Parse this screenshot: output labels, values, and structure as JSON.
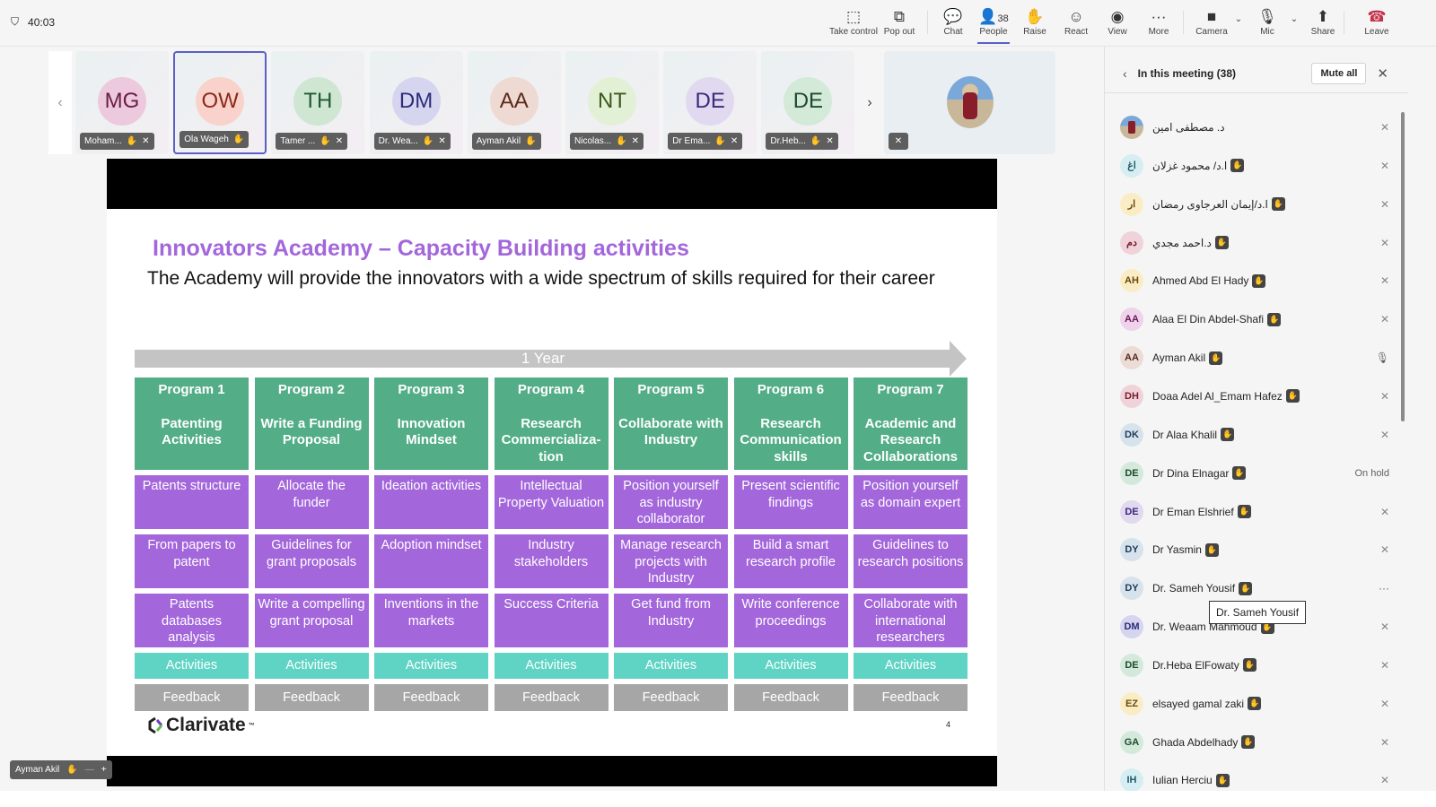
{
  "timer": "40:03",
  "toolbar": [
    {
      "label": "Take control",
      "icon": "take-control-icon",
      "glyph": "⬚"
    },
    {
      "label": "Pop out",
      "icon": "pop-out-icon",
      "glyph": "⧉"
    },
    {
      "label": "Chat",
      "icon": "chat-icon",
      "glyph": "💬"
    },
    {
      "label": "People",
      "icon": "people-icon",
      "glyph": "👤",
      "count": "38",
      "active": true
    },
    {
      "label": "Raise",
      "icon": "raise-hand-icon",
      "glyph": "✋"
    },
    {
      "label": "React",
      "icon": "react-icon",
      "glyph": "☺"
    },
    {
      "label": "View",
      "icon": "view-icon",
      "glyph": "◉"
    },
    {
      "label": "More",
      "icon": "more-icon",
      "glyph": "···"
    },
    {
      "label": "Camera",
      "icon": "camera-off-icon",
      "glyph": "■"
    },
    {
      "label": "Mic",
      "icon": "mic-off-icon",
      "glyph": "🎙"
    },
    {
      "label": "Share",
      "icon": "share-icon",
      "glyph": "⬆"
    },
    {
      "label": "Leave",
      "icon": "leave-icon",
      "glyph": "☎"
    }
  ],
  "strip": [
    {
      "initials": "MG",
      "name": "Moham...",
      "bg": "#ecc9dc",
      "fg": "#6b1c45",
      "muted": true
    },
    {
      "initials": "OW",
      "name": "Ola Wageh",
      "bg": "#f9d3cb",
      "fg": "#8a2a1a",
      "muted": false,
      "selected": true
    },
    {
      "initials": "TH",
      "name": "Tamer ...",
      "bg": "#cfe6d3",
      "fg": "#1f5a2e",
      "muted": true
    },
    {
      "initials": "DM",
      "name": "Dr. Wea...",
      "bg": "#d6d5ef",
      "fg": "#2c2c7a",
      "muted": true
    },
    {
      "initials": "AA",
      "name": "Ayman Akil",
      "bg": "#efd9d3",
      "fg": "#5a2a1a",
      "muted": false
    },
    {
      "initials": "NT",
      "name": "Nicolas...",
      "bg": "#e2f0d6",
      "fg": "#3a5a1a",
      "muted": true
    },
    {
      "initials": "DE",
      "name": "Dr Ema...",
      "bg": "#e0d9f0",
      "fg": "#3a2a7a",
      "muted": true
    },
    {
      "initials": "DE",
      "name": "Dr.Heb...",
      "bg": "#d3ead9",
      "fg": "#1f4a2e",
      "muted": true
    }
  ],
  "slide": {
    "title": "Innovators Academy – Capacity Building activities",
    "subtitle": "The Academy will provide the innovators with a wide spectrum of skills required for their career",
    "timeline": "1 Year",
    "programs": [
      {
        "head": "Program 1",
        "name": "Patenting Activities",
        "items": [
          "Patents structure",
          "From papers to patent",
          "Patents databases analysis"
        ]
      },
      {
        "head": "Program 2",
        "name": "Write a Funding Proposal",
        "items": [
          "Allocate the funder",
          "Guidelines for grant proposals",
          "Write a compelling grant proposal"
        ]
      },
      {
        "head": "Program 3",
        "name": "Innovation Mindset",
        "items": [
          "Ideation activities",
          "Adoption mindset",
          "Inventions in the markets"
        ]
      },
      {
        "head": "Program 4",
        "name": "Research Commercializa-tion",
        "items": [
          "Intellectual Property Valuation",
          "Industry stakeholders",
          "Success Criteria"
        ]
      },
      {
        "head": "Program 5",
        "name": "Collaborate with Industry",
        "items": [
          "Position yourself as industry collaborator",
          "Manage research projects with Industry",
          "Get fund from Industry"
        ]
      },
      {
        "head": "Program 6",
        "name": "Research Communication skills",
        "items": [
          "Present scientific findings",
          "Build a smart research profile",
          "Write conference proceedings"
        ]
      },
      {
        "head": "Program 7",
        "name": "Academic and Research Collaborations",
        "items": [
          "Position yourself as domain expert",
          "Guidelines to research positions",
          "Collaborate with international researchers"
        ]
      }
    ],
    "activities_label": "Activities",
    "feedback_label": "Feedback",
    "logo": "Clarivate",
    "page": "4"
  },
  "self_view": {
    "name": "Ayman Akil"
  },
  "panel": {
    "title": "In this meeting (38)",
    "mute_all": "Mute all",
    "tooltip": "Dr. Sameh Yousif",
    "people": [
      {
        "initials": "",
        "name": "د. مصطفى امين",
        "photo": true,
        "status": "muted",
        "badge": false
      },
      {
        "initials": "اغ",
        "name": "ا.د/ محمود غزلان",
        "bg": "#d6eef2",
        "fg": "#1f5a6a",
        "status": "muted",
        "badge": true
      },
      {
        "initials": "ار",
        "name": "ا.د/إيمان العرجاوى رمضان",
        "bg": "#faedc6",
        "fg": "#6a4a0a",
        "status": "muted",
        "badge": true
      },
      {
        "initials": "دم",
        "name": "د.احمد مجدي",
        "bg": "#f0d3da",
        "fg": "#7a1a2a",
        "status": "muted",
        "badge": true
      },
      {
        "initials": "AH",
        "name": "Ahmed Abd El Hady",
        "bg": "#faedc6",
        "fg": "#6a4a0a",
        "status": "muted",
        "badge": true
      },
      {
        "initials": "AA",
        "name": "Alaa El Din Abdel-Shafi",
        "bg": "#efd3ea",
        "fg": "#6a1a5a",
        "status": "muted",
        "badge": true
      },
      {
        "initials": "AA",
        "name": "Ayman Akil",
        "bg": "#ecdcd8",
        "fg": "#5a2a1a",
        "status": "unmuted",
        "badge": true
      },
      {
        "initials": "DH",
        "name": "Doaa Adel Al_Emam Hafez",
        "bg": "#f0d3da",
        "fg": "#7a1a2a",
        "status": "muted",
        "badge": true
      },
      {
        "initials": "DK",
        "name": "Dr Alaa Khalil",
        "bg": "#d6e3ec",
        "fg": "#1f3a5a",
        "status": "muted",
        "badge": true
      },
      {
        "initials": "DE",
        "name": "Dr Dina Elnagar",
        "bg": "#d3eadb",
        "fg": "#1f4a2e",
        "status": "On hold",
        "badge": true
      },
      {
        "initials": "DE",
        "name": "Dr Eman Elshrief",
        "bg": "#e0d9f0",
        "fg": "#3a2a7a",
        "status": "muted",
        "badge": true
      },
      {
        "initials": "DY",
        "name": "Dr Yasmin",
        "bg": "#d6e3ec",
        "fg": "#1f3a5a",
        "status": "muted",
        "badge": true
      },
      {
        "initials": "DY",
        "name": "Dr. Sameh Yousif",
        "bg": "#d6e3ec",
        "fg": "#1f3a5a",
        "status": "more",
        "badge": true
      },
      {
        "initials": "DM",
        "name": "Dr. Weaam Mahmoud",
        "bg": "#d6d5ef",
        "fg": "#2c2c7a",
        "status": "muted",
        "badge": true
      },
      {
        "initials": "DE",
        "name": "Dr.Heba ElFowaty",
        "bg": "#d3eadb",
        "fg": "#1f4a2e",
        "status": "muted",
        "badge": true
      },
      {
        "initials": "EZ",
        "name": "elsayed gamal zaki",
        "bg": "#faedc6",
        "fg": "#6a4a0a",
        "status": "muted",
        "badge": true
      },
      {
        "initials": "GA",
        "name": "Ghada Abdelhady",
        "bg": "#d3eadb",
        "fg": "#1f4a2e",
        "status": "muted",
        "badge": true
      },
      {
        "initials": "IH",
        "name": "Iulian Herciu",
        "bg": "#d6eef2",
        "fg": "#1f5a6a",
        "status": "muted",
        "badge": true
      }
    ]
  }
}
